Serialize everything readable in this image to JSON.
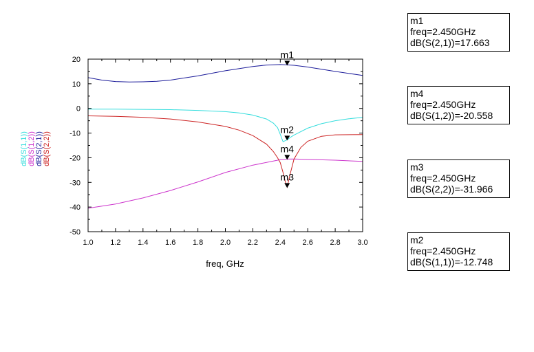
{
  "chart_data": {
    "type": "line",
    "xlabel": "freq, GHz",
    "xlim": [
      1.0,
      3.0
    ],
    "ylim": [
      -50,
      20
    ],
    "xticks": [
      "1.0",
      "1.2",
      "1.4",
      "1.6",
      "1.8",
      "2.0",
      "2.2",
      "2.4",
      "2.6",
      "2.8",
      "3.0"
    ],
    "yticks": [
      "20",
      "10",
      "0",
      "-10",
      "-20",
      "-30",
      "-40",
      "-50"
    ],
    "ylabels": [
      {
        "text": "dB(S(1,1))",
        "color": "#33dddd"
      },
      {
        "text": "dB(S(1,2))",
        "color": "#cc33cc"
      },
      {
        "text": "dB(S(2,1))",
        "color": "#1a1a99"
      },
      {
        "text": "dB(S(2,2))",
        "color": "#cc2222"
      }
    ],
    "series": [
      {
        "name": "dB(S(1,1))",
        "color": "#33dddd",
        "x": [
          1.0,
          1.2,
          1.4,
          1.6,
          1.8,
          2.0,
          2.1,
          2.2,
          2.3,
          2.35,
          2.38,
          2.4,
          2.42,
          2.45,
          2.48,
          2.5,
          2.6,
          2.7,
          2.8,
          2.9,
          3.0
        ],
        "y": [
          -0.3,
          -0.3,
          -0.4,
          -0.5,
          -0.8,
          -1.3,
          -1.8,
          -2.7,
          -4.3,
          -6.0,
          -7.8,
          -10.5,
          -13.5,
          -12.7,
          -11.5,
          -10.8,
          -8.0,
          -6.2,
          -5.0,
          -4.2,
          -3.6
        ]
      },
      {
        "name": "dB(S(1,2))",
        "color": "#cc33cc",
        "x": [
          1.0,
          1.2,
          1.4,
          1.6,
          1.8,
          2.0,
          2.2,
          2.4,
          2.45,
          2.5,
          2.6,
          2.8,
          3.0
        ],
        "y": [
          -40.5,
          -38.8,
          -36.3,
          -33.3,
          -29.8,
          -26.0,
          -23.0,
          -20.8,
          -20.56,
          -20.5,
          -20.7,
          -21.0,
          -21.5
        ]
      },
      {
        "name": "dB(S(2,1))",
        "color": "#1a1a99",
        "x": [
          1.0,
          1.1,
          1.2,
          1.3,
          1.4,
          1.5,
          1.6,
          1.8,
          2.0,
          2.2,
          2.3,
          2.4,
          2.45,
          2.5,
          2.6,
          2.8,
          3.0
        ],
        "y": [
          12.5,
          11.5,
          10.9,
          10.7,
          10.8,
          11.0,
          11.5,
          13.2,
          15.3,
          17.0,
          17.6,
          17.8,
          17.66,
          17.5,
          16.8,
          15.0,
          13.4
        ]
      },
      {
        "name": "dB(S(2,2))",
        "color": "#cc2222",
        "x": [
          1.0,
          1.2,
          1.4,
          1.6,
          1.8,
          2.0,
          2.1,
          2.2,
          2.3,
          2.35,
          2.38,
          2.4,
          2.42,
          2.44,
          2.45,
          2.47,
          2.5,
          2.55,
          2.6,
          2.7,
          2.8,
          3.0
        ],
        "y": [
          -3.0,
          -3.2,
          -3.6,
          -4.3,
          -5.5,
          -7.3,
          -8.8,
          -11.0,
          -14.5,
          -17.5,
          -20.0,
          -22.0,
          -26.0,
          -30.5,
          -31.97,
          -27.0,
          -20.5,
          -15.8,
          -13.3,
          -11.3,
          -10.7,
          -10.6
        ]
      }
    ],
    "markers": [
      {
        "name": "m1",
        "series": "dB(S(2,1))",
        "x": 2.45,
        "y": 17.663,
        "color": "#1a1a99"
      },
      {
        "name": "m2",
        "series": "dB(S(1,1))",
        "x": 2.45,
        "y": -12.748,
        "color": "#33dddd"
      },
      {
        "name": "m4",
        "series": "dB(S(1,2))",
        "x": 2.45,
        "y": -20.558,
        "color": "#cc33cc"
      },
      {
        "name": "m3",
        "series": "dB(S(2,2))",
        "x": 2.45,
        "y": -31.966,
        "color": "#cc2222"
      }
    ]
  },
  "marker_boxes": [
    {
      "name": "m1",
      "freq": "freq=2.450GHz",
      "value": "dB(S(2,1))=17.663"
    },
    {
      "name": "m4",
      "freq": "freq=2.450GHz",
      "value": "dB(S(1,2))=-20.558"
    },
    {
      "name": "m3",
      "freq": "freq=2.450GHz",
      "value": "dB(S(2,2))=-31.966"
    },
    {
      "name": "m2",
      "freq": "freq=2.450GHz",
      "value": "dB(S(1,1))=-12.748"
    }
  ]
}
